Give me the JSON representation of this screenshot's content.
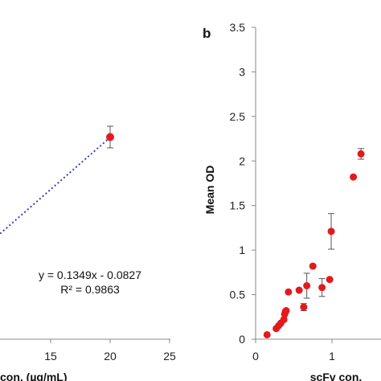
{
  "chart_data": [
    {
      "type": "scatter",
      "panel_label": "",
      "xlabel": "con. (µg/mL)",
      "ylabel": "",
      "xlim": [
        10,
        25
      ],
      "x_ticks": [
        15,
        20,
        25
      ],
      "y_range": [
        0,
        3.5
      ],
      "series": [
        {
          "points": [
            {
              "x": 20,
              "y": 2.62,
              "err": 0.14
            }
          ],
          "color": "#e31a1c"
        }
      ],
      "trendline": {
        "slope": 0.1349,
        "intercept": -0.0827,
        "color": "#3b3fb6",
        "style": "dotted"
      },
      "equation": "y = 0.1349x - 0.0827",
      "r_squared": "R² = 0.9863"
    },
    {
      "type": "scatter",
      "panel_label": "b",
      "xlabel": "scFv con.",
      "ylabel": "Mean OD",
      "xlim": [
        0,
        1.4
      ],
      "x_ticks": [
        0,
        1
      ],
      "ylim": [
        0,
        3.5
      ],
      "y_ticks": [
        0,
        0.5,
        1,
        1.5,
        2,
        2.5,
        3,
        3.5
      ],
      "series": [
        {
          "color": "#e31a1c",
          "points": [
            {
              "x": 0.15,
              "y": 0.05,
              "err": 0
            },
            {
              "x": 0.27,
              "y": 0.12,
              "err": 0
            },
            {
              "x": 0.3,
              "y": 0.15,
              "err": 0
            },
            {
              "x": 0.33,
              "y": 0.18,
              "err": 0
            },
            {
              "x": 0.37,
              "y": 0.22,
              "err": 0
            },
            {
              "x": 0.38,
              "y": 0.28,
              "err": 0
            },
            {
              "x": 0.39,
              "y": 0.31,
              "err": 0
            },
            {
              "x": 0.4,
              "y": 0.32,
              "err": 0
            },
            {
              "x": 0.43,
              "y": 0.53,
              "err": 0
            },
            {
              "x": 0.57,
              "y": 0.55,
              "err": 0
            },
            {
              "x": 0.63,
              "y": 0.36,
              "err": 0.04
            },
            {
              "x": 0.67,
              "y": 0.6,
              "err": 0.14
            },
            {
              "x": 0.75,
              "y": 0.82,
              "err": 0
            },
            {
              "x": 0.87,
              "y": 0.58,
              "err": 0.1
            },
            {
              "x": 0.97,
              "y": 0.67,
              "err": 0
            },
            {
              "x": 0.99,
              "y": 1.21,
              "err": 0.2
            },
            {
              "x": 1.28,
              "y": 1.82,
              "err": 0
            },
            {
              "x": 1.38,
              "y": 2.08,
              "err": 0.06
            }
          ]
        }
      ]
    }
  ]
}
